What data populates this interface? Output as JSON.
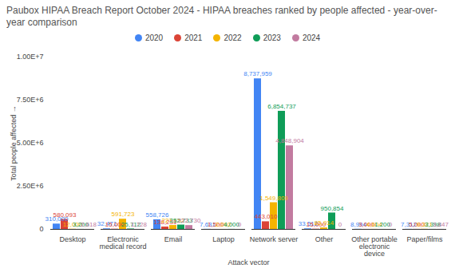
{
  "chart_data": {
    "type": "bar",
    "title": "Paubox HIPAA Breach Report October 2024 - HIPAA breaches ranked by people affected - year-over-year comparison",
    "x_label": "Attack vector",
    "y_label": "Total people affected",
    "categories": [
      "Desktop",
      "Electronic medical record",
      "Email",
      "Laptop",
      "Network server",
      "Other",
      "Other portable electronic device",
      "Paper/films"
    ],
    "series": [
      {
        "name": "2020",
        "color": "#4285f4",
        "values": [
          310000,
          32471,
          558726,
          7631,
          8737959,
          33512,
          8994,
          7312
        ],
        "value_labels": [
          "310,000",
          "32,471",
          "558,726",
          "7,631",
          "8,737,959",
          "33,512",
          "8,994",
          "7,312"
        ]
      },
      {
        "name": "2021",
        "color": "#db4437",
        "values": [
          580093,
          15000,
          138231,
          1500,
          443010,
          15000,
          3000,
          5000
        ],
        "value_labels": [
          "580,093",
          "15,000",
          "138,231",
          "1,500",
          "443,010",
          "15,000",
          "3,000",
          "5,000"
        ]
      },
      {
        "name": "2022",
        "color": "#f4b400",
        "values": [
          12000,
          591723,
          227152,
          2092,
          1549809,
          85914,
          4604,
          9321
        ],
        "value_labels": [
          "12,000",
          "591,723",
          "227,152",
          "2,092",
          "1,549,809",
          "85,914",
          "4,604",
          "9,321"
        ]
      },
      {
        "name": "2023",
        "color": "#0f9d58",
        "values": [
          3200,
          25712,
          252733,
          4000,
          6854737,
          950854,
          1200,
          3398
        ],
        "value_labels": [
          "3,200",
          "25,712",
          "252,733",
          "4,000",
          "6,854,737",
          "950,854",
          "1,200",
          "3,398"
        ]
      },
      {
        "name": "2024",
        "color": "#c27ba0",
        "values": [
          2618,
          1728,
          222730,
          0,
          4848904,
          0,
          0,
          3847
        ],
        "value_labels": [
          "2,618",
          "1,728",
          "222,730",
          "0",
          "4,848,904",
          "0",
          "0",
          "3,847"
        ]
      }
    ],
    "ylim": [
      0,
      10000000
    ],
    "yticks": [
      0,
      {
        "value": 2500000,
        "label": "2.50E+6"
      },
      {
        "value": 5000000,
        "label": "5.00E+6"
      },
      {
        "value": 7500000,
        "label": "7.50E+6"
      },
      {
        "value": 10000000,
        "label": "1.00E+7"
      }
    ],
    "grid": false,
    "legend": "top",
    "data_labels": true
  }
}
